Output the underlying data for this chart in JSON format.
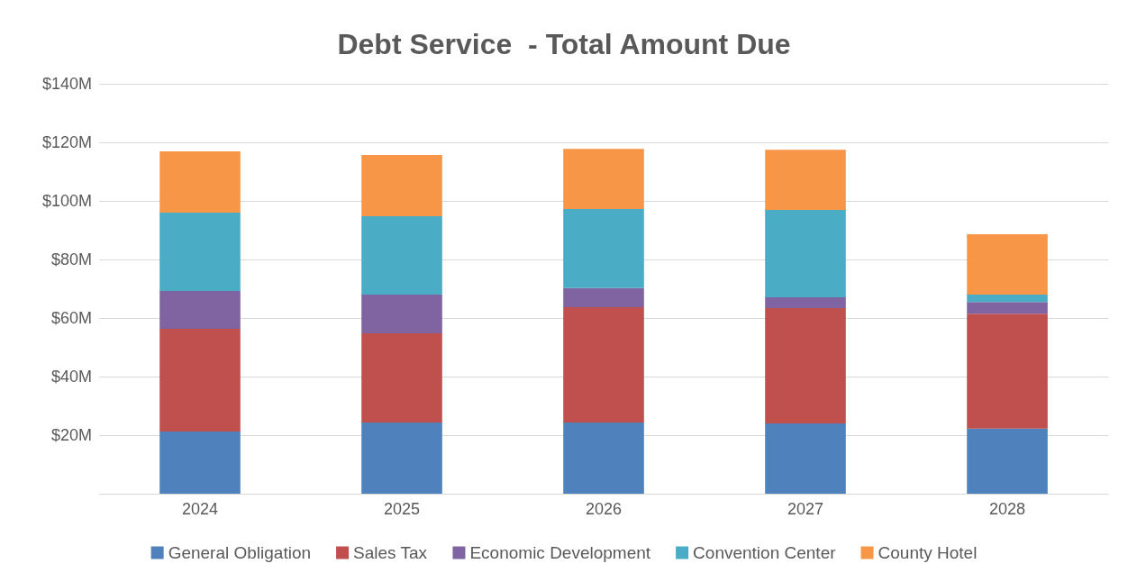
{
  "chart_data": {
    "type": "bar",
    "title": "Debt Service  - Total Amount Due",
    "stacked": true,
    "categories": [
      "2024",
      "2025",
      "2026",
      "2027",
      "2028"
    ],
    "series": [
      {
        "name": "General Obligation",
        "color": "#4f81bd",
        "values": [
          21.2,
          24.3,
          24.3,
          24.0,
          22.2
        ]
      },
      {
        "name": "Sales Tax",
        "color": "#c0504d",
        "values": [
          35.1,
          30.5,
          39.4,
          39.4,
          39.3
        ]
      },
      {
        "name": "Economic Development",
        "color": "#8064a2",
        "values": [
          12.9,
          13.2,
          6.5,
          3.7,
          4.0
        ]
      },
      {
        "name": "Convention Center",
        "color": "#4bacc6",
        "values": [
          26.8,
          26.8,
          27.0,
          29.8,
          2.5
        ]
      },
      {
        "name": "County Hotel",
        "color": "#f79646",
        "values": [
          20.9,
          20.9,
          20.6,
          20.6,
          20.6
        ]
      }
    ],
    "ylim": [
      0,
      140
    ],
    "yticks": [
      {
        "value": 0,
        "label": null
      },
      {
        "value": 20,
        "label": "$20M"
      },
      {
        "value": 40,
        "label": "$40M"
      },
      {
        "value": 60,
        "label": "$60M"
      },
      {
        "value": 80,
        "label": "$80M"
      },
      {
        "value": 100,
        "label": "$100M"
      },
      {
        "value": 120,
        "label": "$120M"
      },
      {
        "value": 140,
        "label": "$140M"
      }
    ],
    "grid": "y",
    "legend": "bottom"
  }
}
